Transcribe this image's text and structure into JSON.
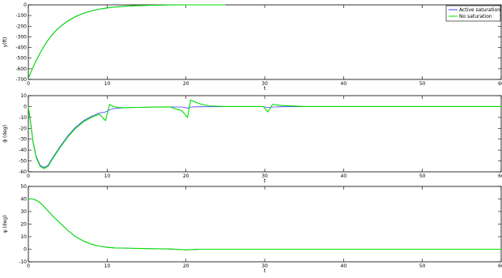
{
  "chart_data": [
    {
      "type": "line",
      "title": "",
      "xlabel": "t",
      "ylabel": "y(ft)",
      "xlim": [
        0,
        60
      ],
      "ylim": [
        -700,
        0
      ],
      "xticks": [
        0,
        10,
        20,
        30,
        40,
        50,
        60
      ],
      "yticks": [
        -700,
        -600,
        -500,
        -400,
        -300,
        -200,
        -100,
        0
      ],
      "grid": false,
      "legend": "top-right",
      "series": [
        {
          "name": "Active saturation",
          "color": "#4040ff",
          "x": [
            0,
            0.5,
            1,
            1.5,
            2,
            2.5,
            3,
            3.5,
            4,
            5,
            6,
            7,
            8,
            9,
            10,
            11,
            12,
            13,
            14,
            15,
            16,
            18,
            20,
            25
          ],
          "y": [
            -690,
            -600,
            -520,
            -450,
            -385,
            -330,
            -282,
            -240,
            -205,
            -150,
            -108,
            -78,
            -56,
            -40,
            -28,
            -20,
            -14,
            -10,
            -7,
            -5,
            -3,
            -1,
            0,
            0
          ]
        },
        {
          "name": "No saturation",
          "color": "#00e000",
          "x": [
            0,
            0.5,
            1,
            1.5,
            2,
            2.5,
            3,
            3.5,
            4,
            5,
            6,
            7,
            8,
            9,
            10,
            11,
            12,
            13,
            14,
            15,
            16,
            18,
            20,
            25
          ],
          "y": [
            -690,
            -602,
            -522,
            -452,
            -387,
            -332,
            -284,
            -242,
            -207,
            -152,
            -110,
            -80,
            -57,
            -41,
            -29,
            -21,
            -15,
            -10,
            -7,
            -5,
            -3,
            -1,
            0,
            0
          ]
        }
      ]
    },
    {
      "type": "line",
      "title": "",
      "xlabel": "t",
      "ylabel": "ϕ (deg)",
      "xlim": [
        0,
        60
      ],
      "ylim": [
        -60,
        10
      ],
      "xticks": [
        0,
        10,
        20,
        30,
        40,
        50,
        60
      ],
      "yticks": [
        -60,
        -50,
        -40,
        -30,
        -20,
        -10,
        0,
        10
      ],
      "grid": false,
      "legend": "",
      "series": [
        {
          "name": "Active saturation",
          "color": "#4040ff",
          "x": [
            0,
            0.3,
            0.6,
            1,
            1.5,
            2,
            2.5,
            3,
            4,
            5,
            6,
            7,
            8,
            9,
            9.8,
            10.3,
            10.8,
            11.5,
            12.5,
            14,
            16,
            18,
            19.5,
            20.2,
            20.6,
            21.2,
            22,
            23,
            25,
            28,
            29.8,
            30.4,
            31,
            32,
            35,
            40,
            50,
            60
          ],
          "y": [
            0,
            -15,
            -32,
            -46,
            -54,
            -56,
            -54,
            -48,
            -37,
            -27,
            -19,
            -13,
            -9,
            -6,
            -5,
            -3,
            -2,
            -1.5,
            -1,
            -0.8,
            -0.5,
            -0.4,
            -0.4,
            -1.5,
            -0.5,
            -0.3,
            -0.2,
            -0.2,
            -0.1,
            -0.1,
            -0.1,
            -1,
            -0.5,
            -0.2,
            -0.1,
            0,
            0,
            0
          ]
        },
        {
          "name": "No saturation",
          "color": "#00e000",
          "x": [
            0,
            0.3,
            0.6,
            1,
            1.5,
            2,
            2.5,
            3,
            4,
            5,
            6,
            7,
            8,
            9,
            9.8,
            10.3,
            10.8,
            11.5,
            12.5,
            14,
            16,
            18,
            19.5,
            20.2,
            20.6,
            21.2,
            22,
            23,
            25,
            28,
            29.8,
            30.4,
            31,
            32,
            35,
            40,
            50,
            60
          ],
          "y": [
            0,
            -16,
            -33,
            -47,
            -55,
            -57,
            -55,
            -49,
            -38,
            -28,
            -20,
            -14,
            -10,
            -7,
            -13,
            2,
            0,
            -1,
            -1,
            -0.8,
            -0.5,
            -0.4,
            -4,
            -10,
            6,
            4,
            2,
            0.5,
            0,
            0,
            0,
            -5,
            2,
            1,
            0,
            0,
            0,
            0
          ]
        }
      ]
    },
    {
      "type": "line",
      "title": "",
      "xlabel": "t",
      "ylabel": "ψ (deg)",
      "xlim": [
        0,
        60
      ],
      "ylim": [
        -10,
        50
      ],
      "xticks": [
        0,
        10,
        20,
        30,
        40,
        50,
        60
      ],
      "yticks": [
        -10,
        0,
        10,
        20,
        30,
        40,
        50
      ],
      "grid": false,
      "legend": "",
      "series": [
        {
          "name": "Active saturation",
          "color": "#4040ff",
          "x": [
            0,
            0.5,
            1,
            1.5,
            2,
            3,
            4,
            5,
            6,
            7,
            8,
            9,
            10,
            11,
            13,
            15,
            18,
            20,
            21,
            22,
            25,
            30,
            40,
            50,
            60
          ],
          "y": [
            40,
            40,
            39,
            37,
            34,
            27,
            21,
            15,
            10,
            6.5,
            4,
            2.5,
            1.5,
            1,
            0.8,
            0.5,
            0.2,
            -0.5,
            -0.2,
            0,
            0,
            0,
            0,
            0,
            0
          ]
        },
        {
          "name": "No saturation",
          "color": "#00e000",
          "x": [
            0,
            0.5,
            1,
            1.5,
            2,
            3,
            4,
            5,
            6,
            7,
            8,
            9,
            10,
            11,
            13,
            15,
            18,
            20,
            21,
            22,
            25,
            30,
            40,
            50,
            60
          ],
          "y": [
            40,
            40,
            39,
            37,
            34,
            27,
            21,
            15,
            10,
            6.5,
            4,
            2.5,
            1.5,
            1,
            0.8,
            0.5,
            0.2,
            -0.5,
            -0.2,
            0,
            0,
            0,
            0,
            0,
            0
          ]
        }
      ]
    }
  ]
}
